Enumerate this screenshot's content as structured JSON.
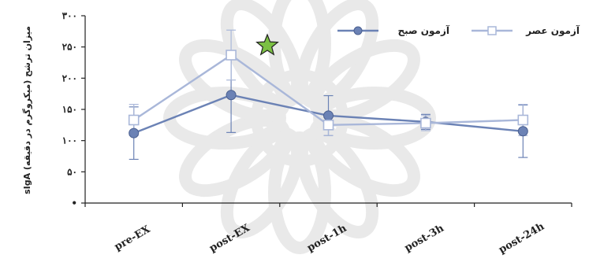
{
  "chart_data": {
    "type": "line",
    "categories": [
      "pre-EX",
      "post-EX",
      "post-1h",
      "post-3h",
      "post-24h"
    ],
    "ylabel": "sIgA میزان ترشح (میکروگرم در دقیقه)",
    "ylim": [
      0,
      300
    ],
    "yticks": [
      0,
      50,
      100,
      150,
      200,
      250,
      300
    ],
    "ytick_labels": [
      "•",
      "۵۰",
      "۱۰۰",
      "۱۵۰",
      "۲۰۰",
      "۲۵۰",
      "۳۰۰"
    ],
    "grid": false,
    "legend_position": "top-right",
    "annotation": "star-marker-post-EX",
    "series": [
      {
        "name": "آزمون صبح",
        "marker": "circle",
        "color": "#6b82b5",
        "values": [
          112,
          173,
          140,
          130,
          115
        ],
        "error": [
          42,
          60,
          32,
          12,
          42
        ]
      },
      {
        "name": "آزمون عصر",
        "marker": "square",
        "color": "#a9b7d9",
        "values": [
          133,
          237,
          125,
          128,
          133
        ],
        "error": [
          25,
          40,
          17,
          12,
          25
        ]
      }
    ],
    "colors": {
      "star_fill": "#7bc043",
      "star_stroke": "#222222",
      "axis": "#222222",
      "watermark": "#e9e9e9"
    }
  }
}
